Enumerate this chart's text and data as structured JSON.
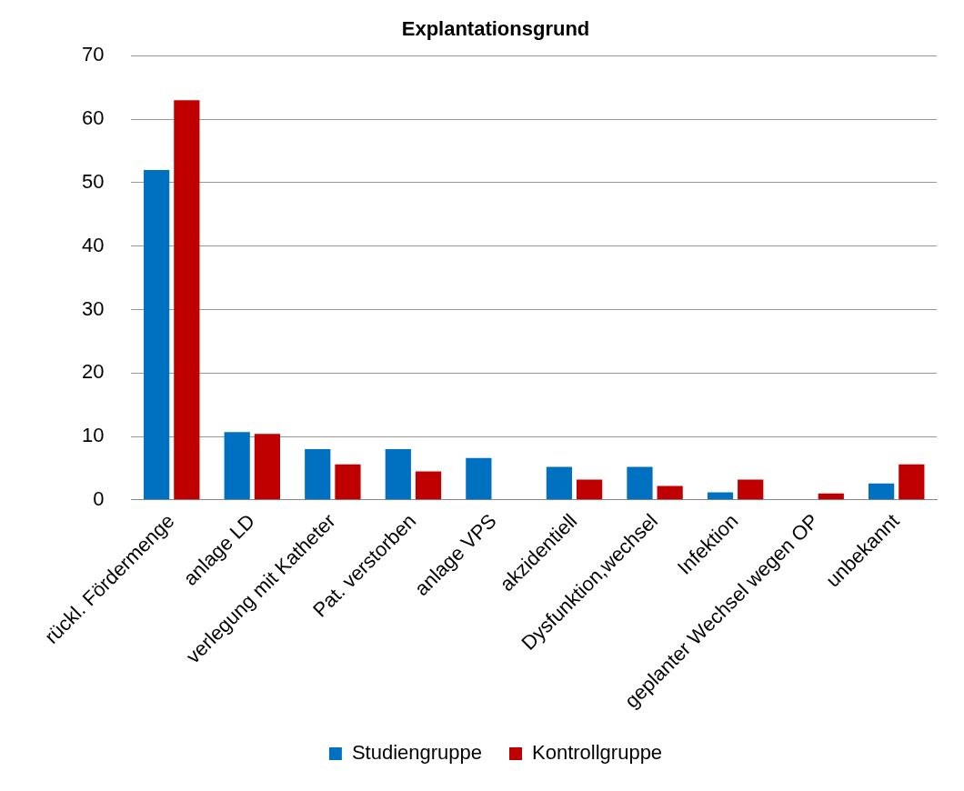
{
  "chart_data": {
    "type": "bar",
    "title": "Explantationsgrund",
    "categories": [
      "rückl. Fördermenge",
      "anlage LD",
      "verlegung mit Katheter",
      "Pat. verstorben",
      "anlage VPS",
      "akzidentiell",
      "Dysfunktion,wechsel",
      "Infektion",
      "geplanter Wechsel wegen OP",
      "unbekannt"
    ],
    "series": [
      {
        "name": "Studiengruppe",
        "color": "#0070c0",
        "values": [
          52,
          10.7,
          8,
          8,
          6.6,
          5.2,
          5.2,
          1.2,
          0,
          2.6
        ]
      },
      {
        "name": "Kontrollgruppe",
        "color": "#c00000",
        "values": [
          63,
          10.4,
          5.6,
          4.5,
          0,
          3.2,
          2.2,
          3.2,
          1,
          5.6
        ]
      }
    ],
    "ylim": [
      0,
      70
    ],
    "yticks": [
      0,
      10,
      20,
      30,
      40,
      50,
      60,
      70
    ],
    "grid": "y",
    "legend": "bottom"
  }
}
